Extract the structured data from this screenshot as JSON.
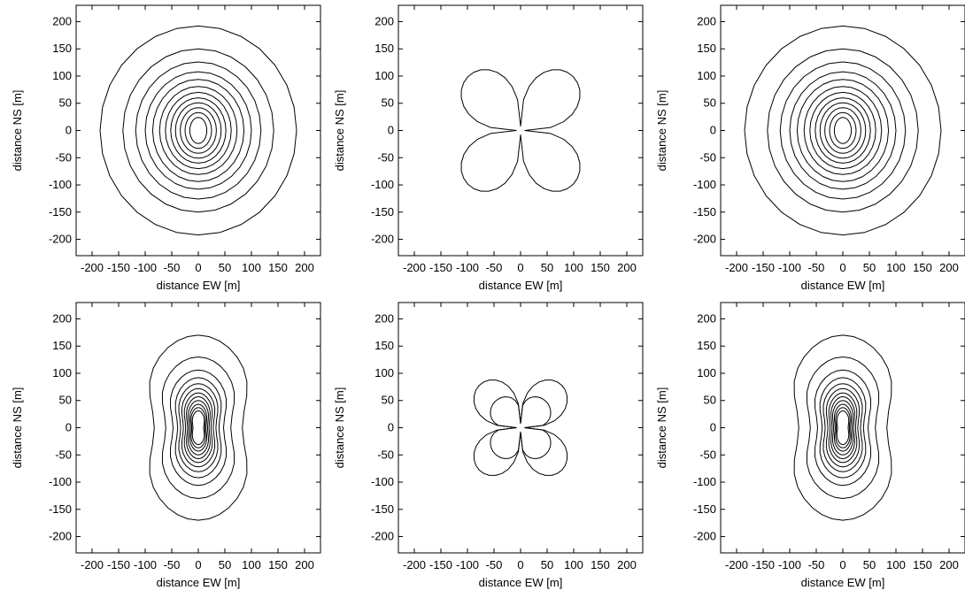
{
  "chart_data": [
    {
      "type": "contour",
      "shape": "circle",
      "xlabel": "distance EW [m]",
      "ylabel": "distance NS [m]",
      "xlim": [
        -230,
        230
      ],
      "ylim": [
        -230,
        230
      ],
      "xticks": [
        -200,
        -150,
        -100,
        -50,
        0,
        50,
        100,
        150,
        200
      ],
      "yticks": [
        -200,
        -150,
        -100,
        -50,
        0,
        50,
        100,
        150,
        200
      ],
      "levels": [
        {
          "rx": 185,
          "ry": 192
        },
        {
          "rx": 142,
          "ry": 150
        },
        {
          "rx": 118,
          "ry": 126
        },
        {
          "rx": 100,
          "ry": 108
        },
        {
          "rx": 86,
          "ry": 94
        },
        {
          "rx": 73,
          "ry": 81
        },
        {
          "rx": 62,
          "ry": 70
        },
        {
          "rx": 52,
          "ry": 60
        },
        {
          "rx": 43,
          "ry": 51
        },
        {
          "rx": 34,
          "ry": 42
        },
        {
          "rx": 25,
          "ry": 33
        },
        {
          "rx": 16,
          "ry": 24
        }
      ]
    },
    {
      "type": "contour",
      "shape": "clover",
      "xlabel": "distance EW [m]",
      "ylabel": "distance NS [m]",
      "xlim": [
        -230,
        230
      ],
      "ylim": [
        -230,
        230
      ],
      "xticks": [
        -200,
        -150,
        -100,
        -50,
        0,
        50,
        100,
        150,
        200
      ],
      "yticks": [
        -200,
        -150,
        -100,
        -50,
        0,
        50,
        100,
        150,
        200
      ],
      "levels": [
        {
          "r": 140,
          "w": 1.0
        }
      ]
    },
    {
      "type": "contour",
      "shape": "circle",
      "xlabel": "distance EW [m]",
      "ylabel": "distance NS [m]",
      "xlim": [
        -230,
        230
      ],
      "ylim": [
        -230,
        230
      ],
      "xticks": [
        -200,
        -150,
        -100,
        -50,
        0,
        50,
        100,
        150,
        200
      ],
      "yticks": [
        -200,
        -150,
        -100,
        -50,
        0,
        50,
        100,
        150,
        200
      ],
      "levels": [
        {
          "rx": 185,
          "ry": 192
        },
        {
          "rx": 142,
          "ry": 150
        },
        {
          "rx": 118,
          "ry": 126
        },
        {
          "rx": 100,
          "ry": 108
        },
        {
          "rx": 86,
          "ry": 94
        },
        {
          "rx": 73,
          "ry": 81
        },
        {
          "rx": 62,
          "ry": 70
        },
        {
          "rx": 52,
          "ry": 60
        },
        {
          "rx": 43,
          "ry": 51
        },
        {
          "rx": 34,
          "ry": 42
        },
        {
          "rx": 25,
          "ry": 33
        },
        {
          "rx": 16,
          "ry": 24
        }
      ]
    },
    {
      "type": "contour",
      "shape": "peanut",
      "xlabel": "distance EW [m]",
      "ylabel": "distance NS [m]",
      "xlim": [
        -230,
        230
      ],
      "ylim": [
        -230,
        230
      ],
      "xticks": [
        -200,
        -150,
        -100,
        -50,
        0,
        50,
        100,
        150,
        200
      ],
      "yticks": [
        -200,
        -150,
        -100,
        -50,
        0,
        50,
        100,
        150,
        200
      ],
      "levels": [
        {
          "rx": 115,
          "ry": 170
        },
        {
          "rx": 85,
          "ry": 130
        },
        {
          "rx": 66,
          "ry": 106
        },
        {
          "rx": 54,
          "ry": 92
        },
        {
          "rx": 46,
          "ry": 81
        },
        {
          "rx": 39,
          "ry": 72
        },
        {
          "rx": 33,
          "ry": 64
        },
        {
          "rx": 28,
          "ry": 57
        },
        {
          "rx": 24,
          "ry": 50
        },
        {
          "rx": 20,
          "ry": 43
        },
        {
          "rx": 17,
          "ry": 37
        },
        {
          "rx": 14,
          "ry": 31
        }
      ]
    },
    {
      "type": "contour",
      "shape": "clover",
      "xlabel": "distance EW [m]",
      "ylabel": "distance NS [m]",
      "xlim": [
        -230,
        230
      ],
      "ylim": [
        -230,
        230
      ],
      "xticks": [
        -200,
        -150,
        -100,
        -50,
        0,
        50,
        100,
        150,
        200
      ],
      "yticks": [
        -200,
        -150,
        -100,
        -50,
        0,
        50,
        100,
        150,
        200
      ],
      "levels": [
        {
          "r": 110,
          "w": 1.0
        },
        {
          "r": 68,
          "w": 0.55
        }
      ]
    },
    {
      "type": "contour",
      "shape": "peanut",
      "xlabel": "distance EW [m]",
      "ylabel": "distance NS [m]",
      "xlim": [
        -230,
        230
      ],
      "ylim": [
        -230,
        230
      ],
      "xticks": [
        -200,
        -150,
        -100,
        -50,
        0,
        50,
        100,
        150,
        200
      ],
      "yticks": [
        -200,
        -150,
        -100,
        -50,
        0,
        50,
        100,
        150,
        200
      ],
      "levels": [
        {
          "rx": 115,
          "ry": 170
        },
        {
          "rx": 85,
          "ry": 130
        },
        {
          "rx": 66,
          "ry": 106
        },
        {
          "rx": 54,
          "ry": 92
        },
        {
          "rx": 46,
          "ry": 81
        },
        {
          "rx": 39,
          "ry": 72
        },
        {
          "rx": 33,
          "ry": 64
        },
        {
          "rx": 28,
          "ry": 57
        },
        {
          "rx": 24,
          "ry": 50
        },
        {
          "rx": 20,
          "ry": 43
        },
        {
          "rx": 17,
          "ry": 37
        },
        {
          "rx": 14,
          "ry": 31
        }
      ]
    }
  ]
}
